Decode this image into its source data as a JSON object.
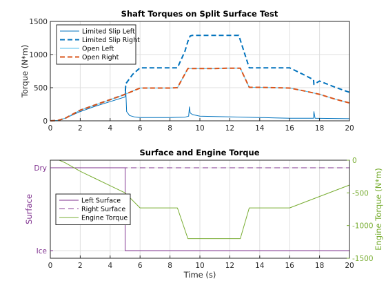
{
  "chart_data": [
    {
      "type": "line",
      "title": "Shaft Torques on Split Surface Test",
      "xlabel": "",
      "ylabel": "Torque (N*m)",
      "xlim": [
        0,
        20
      ],
      "ylim": [
        0,
        1500
      ],
      "xticks": [
        0,
        2,
        4,
        6,
        8,
        10,
        12,
        14,
        16,
        18,
        20
      ],
      "yticks": [
        0,
        500,
        1000,
        1500
      ],
      "grid": true,
      "legend_position": "top-left",
      "series": [
        {
          "name": "Limited Slip Left",
          "color": "#0072BD",
          "style": "solid",
          "width": 1,
          "x": [
            0,
            0.5,
            1,
            2,
            3,
            4,
            5,
            5.03,
            5.1,
            5.3,
            5.6,
            6,
            7,
            8,
            9,
            9.25,
            9.3,
            9.35,
            9.5,
            10,
            11,
            12,
            13,
            14,
            15,
            16,
            17,
            17.6,
            17.62,
            17.7,
            18,
            19,
            20
          ],
          "y": [
            0,
            5,
            40,
            140,
            220,
            290,
            360,
            530,
            140,
            80,
            60,
            50,
            50,
            50,
            55,
            70,
            210,
            120,
            95,
            70,
            65,
            60,
            55,
            50,
            45,
            40,
            40,
            40,
            140,
            40,
            38,
            35,
            32
          ]
        },
        {
          "name": "Limited Slip Right",
          "color": "#0072BD",
          "style": "dashed",
          "width": 2,
          "x": [
            0,
            0.5,
            1,
            2,
            3,
            4,
            5,
            5.05,
            5.5,
            6,
            7,
            8,
            8.5,
            9,
            9.2,
            9.35,
            9.5,
            10,
            11,
            12,
            12.6,
            13.3,
            14,
            15,
            16,
            17,
            17.6,
            17.62,
            18,
            19,
            20
          ],
          "y": [
            0,
            5,
            40,
            160,
            240,
            320,
            400,
            560,
            700,
            800,
            800,
            800,
            800,
            1050,
            1200,
            1280,
            1290,
            1290,
            1290,
            1290,
            1290,
            800,
            800,
            800,
            800,
            690,
            620,
            550,
            600,
            510,
            430
          ]
        },
        {
          "name": "Open Left",
          "color": "#4DBEEE",
          "style": "solid",
          "width": 1,
          "x": [
            0,
            0.5,
            1,
            2,
            3,
            4,
            5,
            6,
            7,
            8,
            8.5,
            9.2,
            10,
            11,
            12,
            12.7,
            13.3,
            14,
            15,
            16,
            17,
            18,
            19,
            20
          ],
          "y": [
            0,
            5,
            40,
            160,
            240,
            320,
            400,
            495,
            495,
            495,
            500,
            790,
            790,
            790,
            795,
            795,
            505,
            505,
            500,
            495,
            450,
            400,
            330,
            270
          ]
        },
        {
          "name": "Open Right",
          "color": "#D95319",
          "style": "dashed",
          "width": 2,
          "x": [
            0,
            0.5,
            1,
            2,
            3,
            4,
            5,
            6,
            7,
            8,
            8.5,
            9.2,
            10,
            11,
            12,
            12.7,
            13.3,
            14,
            15,
            16,
            17,
            18,
            19,
            20
          ],
          "y": [
            0,
            5,
            40,
            160,
            240,
            320,
            400,
            495,
            495,
            495,
            500,
            790,
            790,
            790,
            795,
            795,
            505,
            505,
            500,
            495,
            450,
            400,
            330,
            270
          ]
        }
      ]
    },
    {
      "type": "line",
      "title": "Surface and Engine Torque",
      "xlabel": "Time (s)",
      "ylabel": "Surface",
      "ylabel_right": "Engine Torque (N*m)",
      "xlim": [
        0,
        20
      ],
      "xticks": [
        0,
        2,
        4,
        6,
        8,
        10,
        12,
        14,
        16,
        18,
        20
      ],
      "left_ticks": [
        "Dry",
        "Ice"
      ],
      "yticks_right": [
        0,
        -500,
        -1000,
        -1500
      ],
      "ylim_right": [
        -1500,
        0
      ],
      "grid": true,
      "legend_position": "center-left",
      "series": [
        {
          "name": "Left Surface",
          "color": "#7E2F8E",
          "style": "solid",
          "axis": "left",
          "x": [
            0,
            5,
            5,
            20
          ],
          "y": [
            "Dry",
            "Dry",
            "Ice",
            "Ice"
          ]
        },
        {
          "name": "Right Surface",
          "color": "#7E2F8E",
          "style": "dashed",
          "axis": "left",
          "x": [
            0,
            20
          ],
          "y": [
            "Dry",
            "Dry"
          ]
        },
        {
          "name": "Engine Torque",
          "color": "#77AC30",
          "style": "solid",
          "axis": "right",
          "x": [
            0.6,
            1,
            2,
            3,
            4,
            5,
            6,
            8.5,
            9.2,
            12.7,
            13.3,
            16,
            20
          ],
          "y": [
            0,
            -40,
            -170,
            -280,
            -390,
            -500,
            -730,
            -730,
            -1200,
            -1200,
            -730,
            -730,
            -380
          ]
        }
      ]
    }
  ]
}
